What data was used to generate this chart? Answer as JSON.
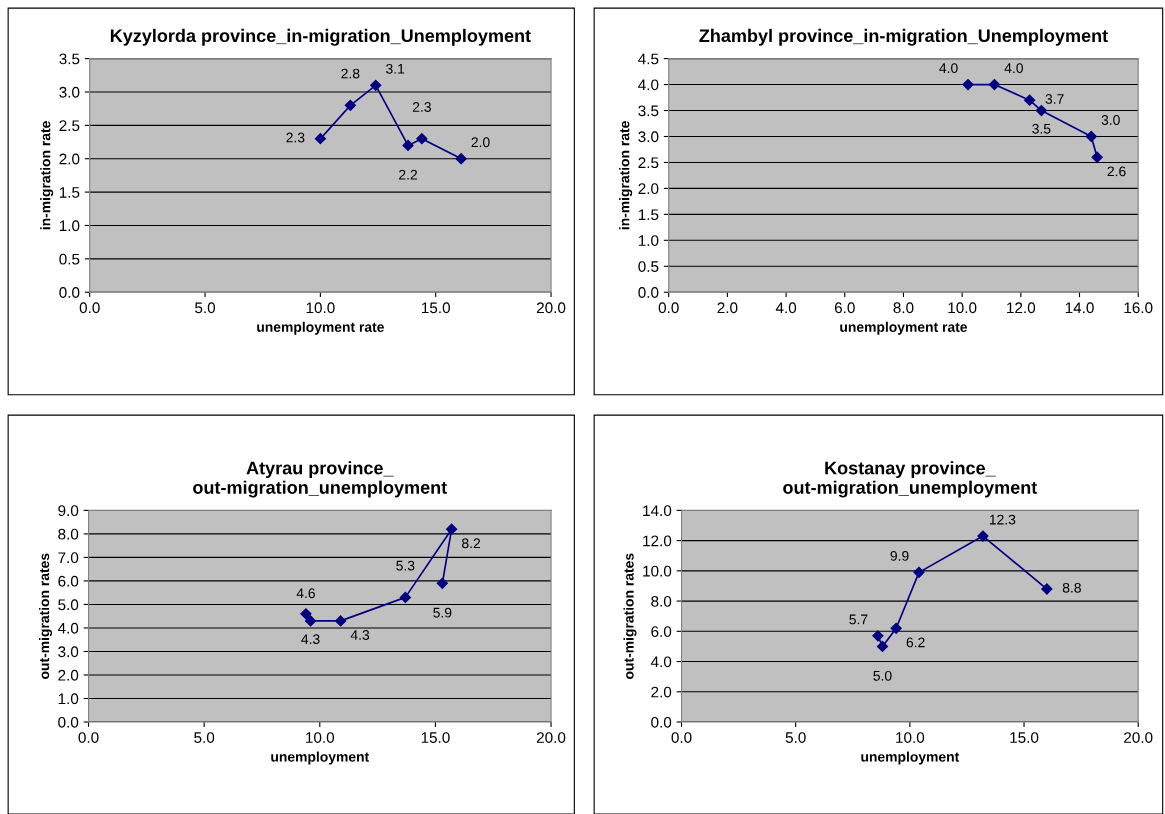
{
  "chart_data": [
    {
      "type": "line",
      "title": "Kyzylorda province_in-migration_Unemployment",
      "xlabel": "unemployment rate",
      "ylabel": "in-migration rate",
      "marker": "diamond",
      "grid": "y",
      "series": [
        {
          "color": "#000080",
          "x": [
            10.0,
            11.3,
            12.4,
            13.8,
            14.4,
            16.1
          ],
          "values": [
            2.3,
            2.8,
            3.1,
            2.2,
            2.3,
            2.0
          ],
          "value_labels": [
            "2.3",
            "2.8",
            "3.1",
            "2.2",
            "2.3",
            "2.0"
          ]
        }
      ],
      "xlim": [
        0,
        20
      ],
      "xticks": [
        {
          "value": 0,
          "label": "0.0"
        },
        {
          "value": 5,
          "label": "5.0"
        },
        {
          "value": 10,
          "label": "10.0"
        },
        {
          "value": 15,
          "label": "15.0"
        },
        {
          "value": 20,
          "label": "20.0"
        }
      ],
      "ylim": [
        0,
        3.5
      ],
      "yticks": [
        {
          "value": 0,
          "label": "0.0"
        },
        0.5,
        {
          "value": 1,
          "label": "1.0"
        },
        1.5,
        {
          "value": 2,
          "label": "2.0"
        },
        2.5,
        {
          "value": 3,
          "label": "3.0"
        },
        3.5
      ]
    },
    {
      "type": "line",
      "title": "Zhambyl province_in-migration_Unemployment",
      "xlabel": "unemployment rate",
      "ylabel": "in-migration rate",
      "marker": "diamond",
      "grid": "y",
      "series": [
        {
          "color": "#000080",
          "x": [
            10.2,
            11.1,
            12.3,
            12.7,
            14.4,
            14.6
          ],
          "values": [
            4.0,
            4.0,
            3.7,
            3.5,
            3.0,
            2.6
          ],
          "value_labels": [
            "4.0",
            "4.0",
            "3.7",
            "3.5",
            "3.0",
            "2.6"
          ]
        }
      ],
      "xlim": [
        0,
        16
      ],
      "xticks": [
        {
          "value": 0,
          "label": "0.0"
        },
        {
          "value": 2,
          "label": "2.0"
        },
        {
          "value": 4,
          "label": "4.0"
        },
        {
          "value": 6,
          "label": "6.0"
        },
        {
          "value": 8,
          "label": "8.0"
        },
        {
          "value": 10,
          "label": "10.0"
        },
        {
          "value": 12,
          "label": "12.0"
        },
        {
          "value": 14,
          "label": "14.0"
        },
        {
          "value": 16,
          "label": "16.0"
        }
      ],
      "ylim": [
        0,
        4.5
      ],
      "yticks": [
        {
          "value": 0,
          "label": "0.0"
        },
        0.5,
        {
          "value": 1,
          "label": "1.0"
        },
        1.5,
        {
          "value": 2,
          "label": "2.0"
        },
        2.5,
        {
          "value": 3,
          "label": "3.0"
        },
        3.5,
        {
          "value": 4,
          "label": "4.0"
        },
        4.5
      ]
    },
    {
      "type": "line",
      "title": "Atyrau province_\nout-migration_unemployment",
      "xlabel": "unemployment",
      "ylabel": "out-migration rates",
      "marker": "diamond",
      "grid": "y",
      "series": [
        {
          "color": "#000080",
          "x": [
            9.4,
            9.6,
            10.9,
            13.7,
            15.7,
            15.3
          ],
          "values": [
            4.6,
            4.3,
            4.3,
            5.3,
            8.2,
            5.9
          ],
          "value_labels": [
            "4.6",
            "4.3",
            "4.3",
            "5.3",
            "8.2",
            "5.9"
          ]
        }
      ],
      "xlim": [
        0,
        20
      ],
      "xticks": [
        {
          "value": 0,
          "label": "0.0"
        },
        {
          "value": 5,
          "label": "5.0"
        },
        {
          "value": 10,
          "label": "10.0"
        },
        {
          "value": 15,
          "label": "15.0"
        },
        {
          "value": 20,
          "label": "20.0"
        }
      ],
      "ylim": [
        0,
        9
      ],
      "yticks": [
        {
          "value": 0,
          "label": "0.0"
        },
        {
          "value": 1,
          "label": "1.0"
        },
        {
          "value": 2,
          "label": "2.0"
        },
        {
          "value": 3,
          "label": "3.0"
        },
        {
          "value": 4,
          "label": "4.0"
        },
        {
          "value": 5,
          "label": "5.0"
        },
        {
          "value": 6,
          "label": "6.0"
        },
        {
          "value": 7,
          "label": "7.0"
        },
        {
          "value": 8,
          "label": "8.0"
        },
        {
          "value": 9,
          "label": "9.0"
        }
      ]
    },
    {
      "type": "line",
      "title": "Kostanay province_\nout-migration_unemployment",
      "xlabel": "unemployment",
      "ylabel": "out-migration rates",
      "marker": "diamond",
      "grid": "y",
      "series": [
        {
          "color": "#000080",
          "x": [
            8.6,
            8.8,
            9.4,
            10.4,
            13.2,
            16.0
          ],
          "values": [
            5.7,
            5.0,
            6.2,
            9.9,
            12.3,
            8.8
          ],
          "value_labels": [
            "5.7",
            "5.0",
            "6.2",
            "9.9",
            "12.3",
            "8.8"
          ]
        }
      ],
      "xlim": [
        0,
        20
      ],
      "xticks": [
        {
          "value": 0,
          "label": "0.0"
        },
        {
          "value": 5,
          "label": "5.0"
        },
        {
          "value": 10,
          "label": "10.0"
        },
        {
          "value": 15,
          "label": "15.0"
        },
        {
          "value": 20,
          "label": "20.0"
        }
      ],
      "ylim": [
        0,
        14
      ],
      "yticks": [
        {
          "value": 0,
          "label": "0.0"
        },
        {
          "value": 2,
          "label": "2.0"
        },
        {
          "value": 4,
          "label": "4.0"
        },
        {
          "value": 6,
          "label": "6.0"
        },
        {
          "value": 8,
          "label": "8.0"
        },
        {
          "value": 10,
          "label": "10.0"
        },
        {
          "value": 12,
          "label": "12.0"
        },
        {
          "value": 14,
          "label": "14.0"
        }
      ]
    }
  ]
}
